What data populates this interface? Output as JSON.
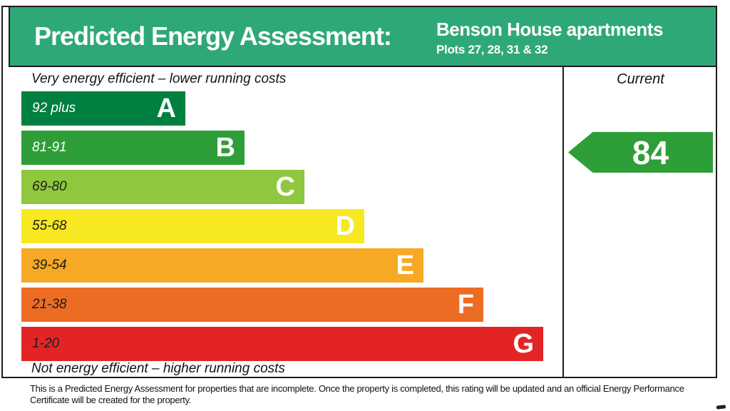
{
  "header": {
    "title": "Predicted Energy Assessment:",
    "property_name": "Benson House apartments",
    "property_plots": "Plots 27, 28, 31 & 32",
    "background_color": "#2fa878"
  },
  "chart_data": {
    "type": "bar",
    "title": "Predicted Energy Assessment",
    "top_caption": "Very energy efficient – lower running costs",
    "bottom_caption": "Not energy efficient – higher running costs",
    "column_header": "Current",
    "bands": [
      {
        "letter": "A",
        "range": "92 plus",
        "color": "#008040",
        "bar_length": 230,
        "label_color": "#ffffff"
      },
      {
        "letter": "B",
        "range": "81-91",
        "color": "#2e9e38",
        "bar_length": 313,
        "label_color": "#ffffff"
      },
      {
        "letter": "C",
        "range": "69-80",
        "color": "#8fc73e",
        "bar_length": 397,
        "label_color": "#1d1d1b"
      },
      {
        "letter": "D",
        "range": "55-68",
        "color": "#f7e821",
        "bar_length": 481,
        "label_color": "#1d1d1b"
      },
      {
        "letter": "E",
        "range": "39-54",
        "color": "#f6a924",
        "bar_length": 564,
        "label_color": "#1d1d1b"
      },
      {
        "letter": "F",
        "range": "21-38",
        "color": "#ed6c23",
        "bar_length": 648,
        "label_color": "#1d1d1b"
      },
      {
        "letter": "G",
        "range": "1-20",
        "color": "#e32427",
        "bar_length": 732,
        "label_color": "#1d1d1b"
      }
    ],
    "current": {
      "value": "84",
      "band": "B",
      "color": "#2e9e38"
    }
  },
  "footer": {
    "disclaimer": "This is a Predicted Energy Assessment for properties that are incomplete. Once the property is completed, this rating will be updated and an official Energy Performance Certificate will be created for the property."
  }
}
